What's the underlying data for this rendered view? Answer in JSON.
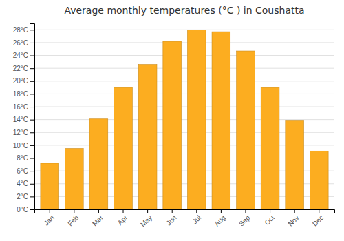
{
  "chart_data": {
    "type": "bar",
    "title": "Average monthly temperatures (°C ) in Coushatta",
    "categories": [
      "Jan",
      "Feb",
      "Mar",
      "Apr",
      "May",
      "Jun",
      "Jul",
      "Aug",
      "Sep",
      "Oct",
      "Nov",
      "Dec"
    ],
    "values": [
      7.2,
      9.5,
      14.1,
      19.0,
      22.6,
      26.2,
      28.0,
      27.7,
      24.7,
      19.0,
      13.9,
      9.1
    ],
    "color": "#FCAD20",
    "ylim": [
      0,
      29
    ],
    "yticks": [
      {
        "value": 0,
        "label": "0°C"
      },
      {
        "value": 2,
        "label": "2°C"
      },
      {
        "value": 4,
        "label": "4°C"
      },
      {
        "value": 6,
        "label": "6°C"
      },
      {
        "value": 8,
        "label": "8°C"
      },
      {
        "value": 10,
        "label": "10°C"
      },
      {
        "value": 12,
        "label": "12°C"
      },
      {
        "value": 14,
        "label": "14°C"
      },
      {
        "value": 16,
        "label": "16°C"
      },
      {
        "value": 18,
        "label": "18°C"
      },
      {
        "value": 20,
        "label": "20°C"
      },
      {
        "value": 22,
        "label": "22°C"
      },
      {
        "value": 24,
        "label": "24°C"
      },
      {
        "value": 26,
        "label": "26°C"
      },
      {
        "value": 28,
        "label": "28°C"
      }
    ],
    "grid": true
  }
}
